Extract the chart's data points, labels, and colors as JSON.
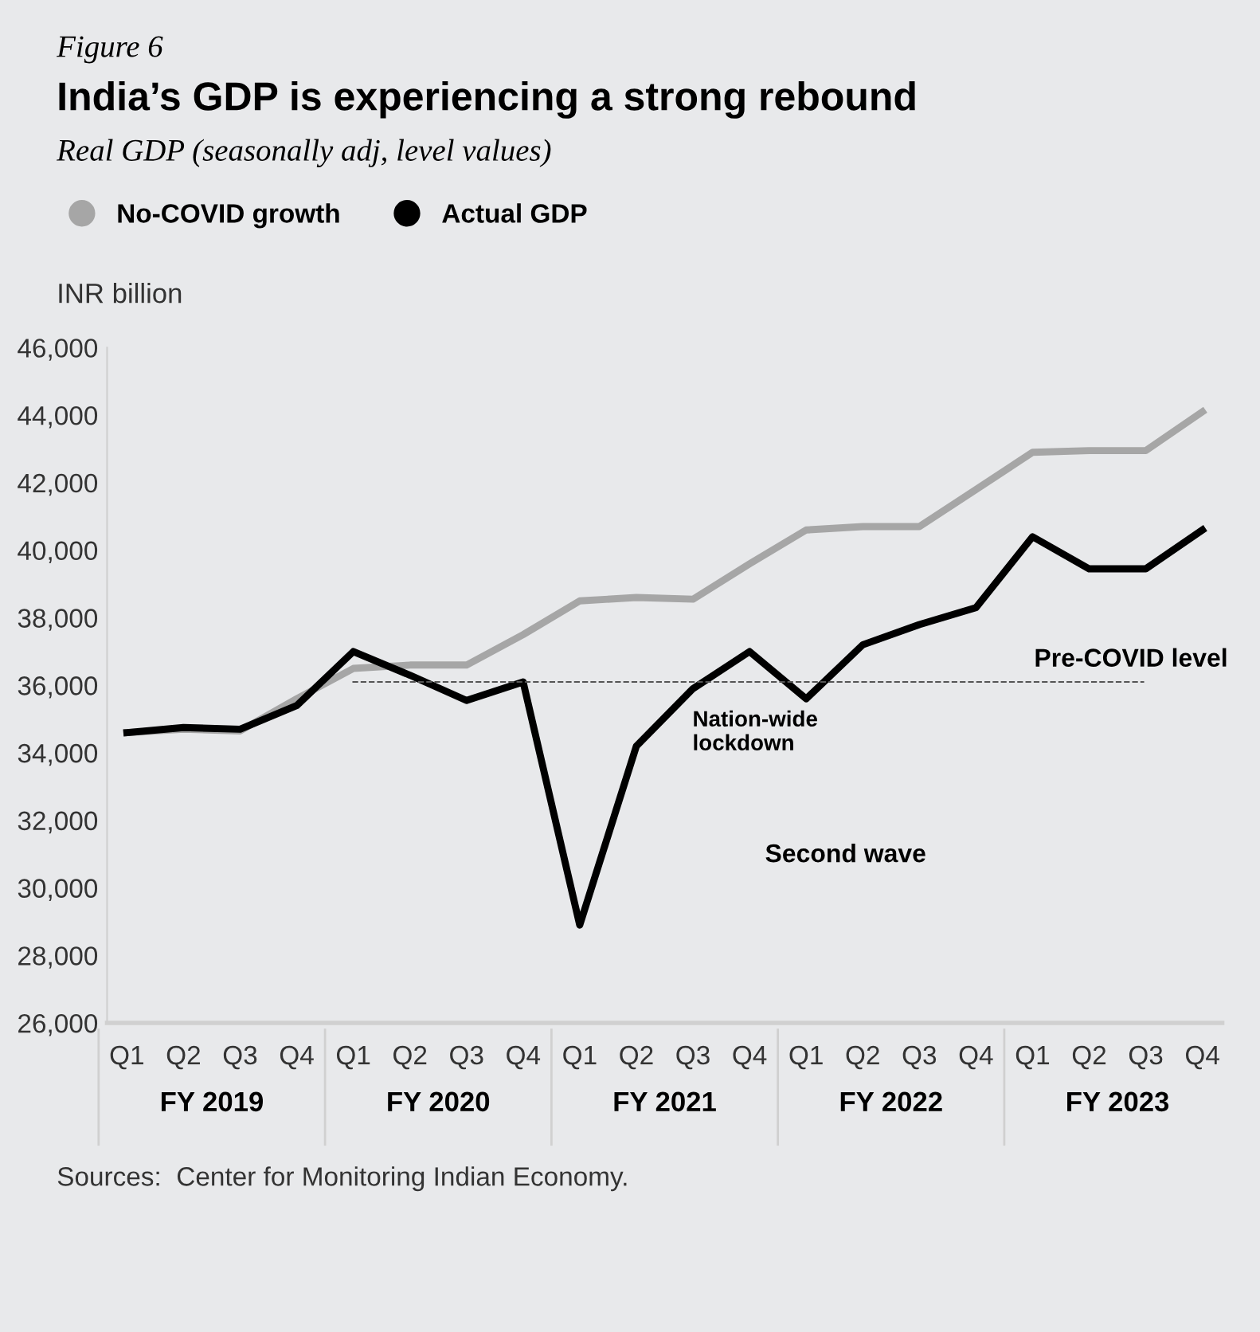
{
  "chart_data": {
    "type": "line",
    "title": "India’s GDP is experiencing a strong rebound",
    "subtitle": "Real GDP (seasonally adj, level values)",
    "ylabel": "INR billion",
    "categories": [
      "Q1",
      "Q2",
      "Q3",
      "Q4",
      "Q1",
      "Q2",
      "Q3",
      "Q4",
      "Q1",
      "Q2",
      "Q3",
      "Q4",
      "Q1",
      "Q2",
      "Q3",
      "Q4",
      "Q1",
      "Q2",
      "Q3",
      "Q4"
    ],
    "series": [
      {
        "name": "No-COVID growth",
        "color": "#a6a6a6",
        "values": [
          34600,
          34700,
          34650,
          35600,
          36500,
          36600,
          36600,
          37500,
          38500,
          38600,
          38550,
          39600,
          40600,
          40700,
          40700,
          41800,
          42900,
          42950,
          42950,
          44100
        ]
      },
      {
        "name": "Actual GDP",
        "color": "#000000",
        "values": [
          34600,
          34750,
          34700,
          35400,
          37000,
          36300,
          35550,
          36100,
          28900,
          34200,
          35900,
          37000,
          35600,
          37200,
          37800,
          38300,
          40400,
          39450,
          39450,
          40600
        ]
      }
    ],
    "ylim": [
      26000,
      46000
    ],
    "yticks": [
      {
        "value": 26000,
        "label": "26,000"
      },
      {
        "value": 28000,
        "label": "28,000"
      },
      {
        "value": 30000,
        "label": "30,000"
      },
      {
        "value": 32000,
        "label": "32,000"
      },
      {
        "value": 34000,
        "label": "34,000"
      },
      {
        "value": 36000,
        "label": "36,000"
      },
      {
        "value": 38000,
        "label": "38,000"
      },
      {
        "value": 40000,
        "label": "40,000"
      },
      {
        "value": 42000,
        "label": "42,000"
      },
      {
        "value": 44000,
        "label": "44,000"
      },
      {
        "value": 46000,
        "label": "46,000"
      }
    ],
    "ref_lines": [
      {
        "axis": "y",
        "value": 36100,
        "label": "Pre-COVID level",
        "color": "#555555",
        "line_style": "dashed"
      }
    ],
    "annotations": [
      "Figure 6",
      "Nation-wide\nlockdown",
      "Second wave",
      "Sources:  Center for Monitoring Indian Economy.",
      "FY 2019",
      "FY 2020",
      "FY 2021",
      "FY 2022",
      "FY 2023"
    ],
    "legend": "top left",
    "grid": false,
    "marker": "none",
    "line_style": "solid"
  }
}
